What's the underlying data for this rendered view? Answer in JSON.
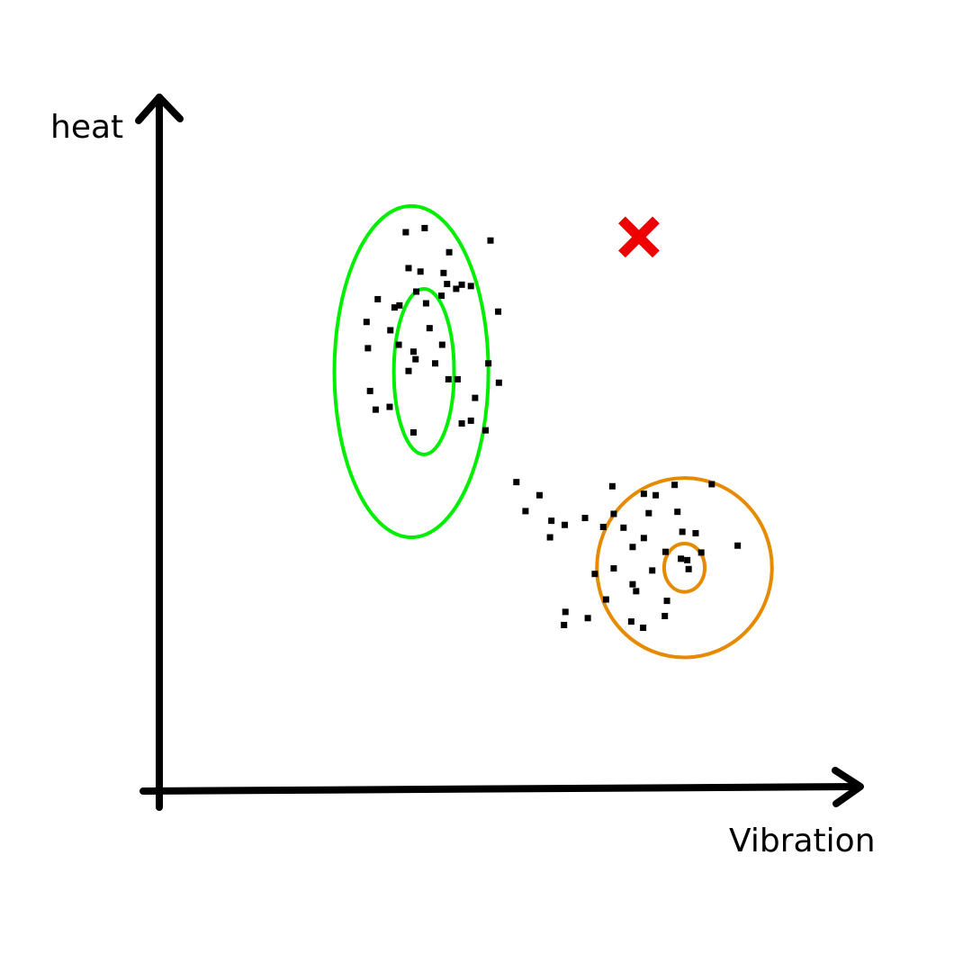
{
  "chart_data": {
    "type": "scatter",
    "xlabel": "Vibration",
    "ylabel": "heat",
    "xlim": [
      0,
      100
    ],
    "ylim": [
      0,
      100
    ],
    "grid": false,
    "legend": "none",
    "colors": {
      "points": "#000000",
      "cluster_1": "#00ee00",
      "cluster_2": "#e68a00",
      "anomaly": "#ee0000",
      "axes": "#000000"
    },
    "series": [
      {
        "points": [
          [
            35.2,
            80.7
          ],
          [
            37.9,
            81.3
          ],
          [
            41.4,
            77.8
          ],
          [
            31.2,
            71.0
          ],
          [
            35.6,
            75.5
          ],
          [
            36.7,
            72.1
          ],
          [
            41.1,
            73.2
          ],
          [
            33.6,
            69.8
          ],
          [
            37.3,
            75.0
          ],
          [
            40.6,
            74.8
          ],
          [
            42.4,
            72.5
          ],
          [
            47.3,
            79.5
          ],
          [
            44.5,
            72.9
          ],
          [
            43.2,
            73.1
          ],
          [
            38.1,
            70.4
          ],
          [
            40.3,
            71.5
          ],
          [
            48.4,
            69.2
          ],
          [
            38.6,
            66.8
          ],
          [
            34.3,
            70.1
          ],
          [
            29.6,
            67.7
          ],
          [
            33.0,
            66.5
          ],
          [
            34.2,
            64.4
          ],
          [
            36.3,
            63.4
          ],
          [
            40.4,
            64.4
          ],
          [
            36.6,
            62.3
          ],
          [
            35.6,
            60.6
          ],
          [
            39.4,
            61.7
          ],
          [
            29.8,
            63.9
          ],
          [
            30.1,
            57.7
          ],
          [
            42.6,
            59.4
          ],
          [
            41.3,
            59.4
          ],
          [
            48.5,
            58.9
          ],
          [
            45.1,
            56.7
          ],
          [
            32.9,
            55.4
          ],
          [
            30.9,
            55.0
          ],
          [
            43.2,
            53.0
          ],
          [
            44.5,
            53.4
          ],
          [
            46.6,
            52.0
          ],
          [
            36.3,
            51.7
          ],
          [
            47.0,
            61.7
          ]
        ]
      },
      {
        "points": [
          [
            64.7,
            43.9
          ],
          [
            73.6,
            44.1
          ],
          [
            78.9,
            44.2
          ],
          [
            51.0,
            44.5
          ],
          [
            70.9,
            42.6
          ],
          [
            69.2,
            42.8
          ],
          [
            54.3,
            42.6
          ],
          [
            69.9,
            40.0
          ],
          [
            74.0,
            40.2
          ],
          [
            56.0,
            38.9
          ],
          [
            60.8,
            39.3
          ],
          [
            64.9,
            39.9
          ],
          [
            52.3,
            40.3
          ],
          [
            63.4,
            38.0
          ],
          [
            57.9,
            38.3
          ],
          [
            55.8,
            36.5
          ],
          [
            74.7,
            37.3
          ],
          [
            76.6,
            37.1
          ],
          [
            66.3,
            37.9
          ],
          [
            67.6,
            35.1
          ],
          [
            69.2,
            36.4
          ],
          [
            72.3,
            34.4
          ],
          [
            74.5,
            33.4
          ],
          [
            77.4,
            34.3
          ],
          [
            82.6,
            35.3
          ],
          [
            75.4,
            33.2
          ],
          [
            75.6,
            31.9
          ],
          [
            70.4,
            31.7
          ],
          [
            62.2,
            31.2
          ],
          [
            64.9,
            32.0
          ],
          [
            72.5,
            27.3
          ],
          [
            67.6,
            29.7
          ],
          [
            63.8,
            27.5
          ],
          [
            67.4,
            24.3
          ],
          [
            69.1,
            23.4
          ],
          [
            72.2,
            25.1
          ],
          [
            61.2,
            24.8
          ],
          [
            57.8,
            23.8
          ],
          [
            68.1,
            28.7
          ],
          [
            58.0,
            25.7
          ]
        ]
      }
    ],
    "anomalies": [
      {
        "x": 68.5,
        "y": 80.0
      }
    ],
    "contours": [
      {
        "cx": 36.0,
        "cy": 60.5,
        "rx": 11.0,
        "ry": 24.0,
        "color": "cluster_1"
      },
      {
        "cx": 37.8,
        "cy": 60.5,
        "rx": 4.3,
        "ry": 12.0,
        "color": "cluster_1"
      },
      {
        "cx": 75.0,
        "cy": 32.1,
        "rx": 12.5,
        "ry": 13.0,
        "color": "cluster_2"
      },
      {
        "cx": 75.0,
        "cy": 32.1,
        "rx": 2.9,
        "ry": 3.5,
        "color": "cluster_2"
      }
    ]
  }
}
